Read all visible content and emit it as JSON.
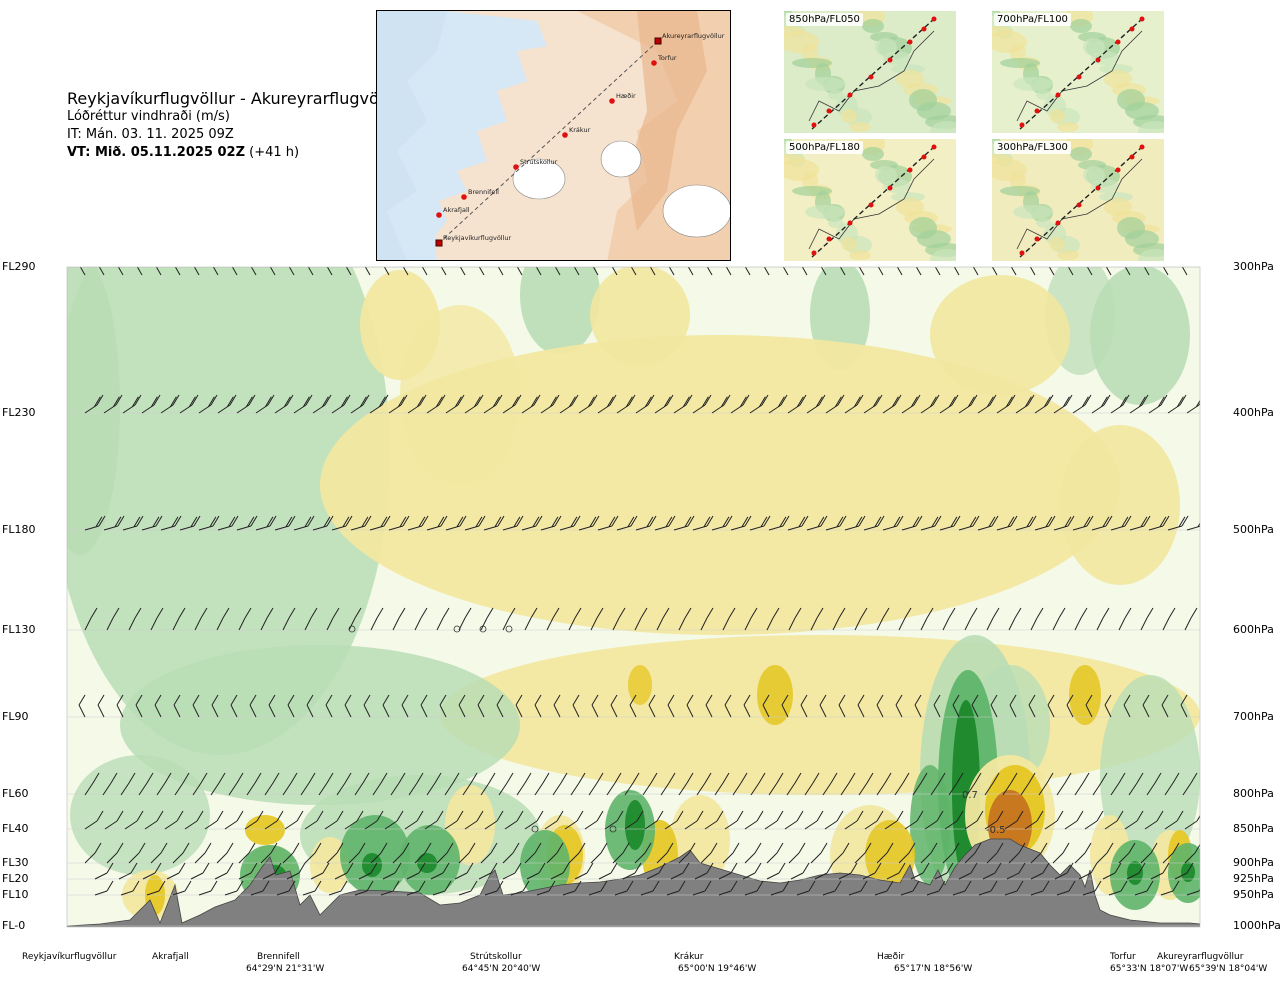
{
  "header": {
    "route": "Reykjavíkurflugvöllur - Akureyrarflugvöllur",
    "parameter": "Lóðréttur vindhraði (m/s)",
    "issue_time": "IT: Mán. 03. 11. 2025 09Z",
    "valid_label": "VT: Mið. 05.11.2025 02Z",
    "valid_offset": "(+41 h)"
  },
  "map": {
    "points": [
      "Akureyrarflugvöllur",
      "Torfur",
      "Hæðir",
      "Krákur",
      "Strútskollur",
      "Brennifell",
      "Akrafjall",
      "Reykjavíkurflugvöllur"
    ]
  },
  "thumbnails": [
    "850hPa/FL050",
    "700hPa/FL100",
    "500hPa/FL180",
    "300hPa/FL300"
  ],
  "levels": [
    {
      "fl": "FL290",
      "hpa": "300hPa"
    },
    {
      "fl": "FL230",
      "hpa": "400hPa"
    },
    {
      "fl": "FL180",
      "hpa": "500hPa"
    },
    {
      "fl": "FL130",
      "hpa": "600hPa"
    },
    {
      "fl": "FL90",
      "hpa": "700hPa"
    },
    {
      "fl": "FL60",
      "hpa": "800hPa"
    },
    {
      "fl": "FL40",
      "hpa": "850hPa"
    },
    {
      "fl": "FL30",
      "hpa": "900hPa"
    },
    {
      "fl": "FL20",
      "hpa": "925hPa"
    },
    {
      "fl": "FL10",
      "hpa": "950hPa"
    },
    {
      "fl": "FL-0",
      "hpa": "1000hPa"
    }
  ],
  "waypoints": [
    {
      "name": "Reykjavíkurflugvöllur",
      "coord": ""
    },
    {
      "name": "Akrafjall",
      "coord": ""
    },
    {
      "name": "Brennifell",
      "coord": "64°29'N 21°31'W"
    },
    {
      "name": "Strútskollur",
      "coord": "64°45'N 20°40'W"
    },
    {
      "name": "Krákur",
      "coord": "65°00'N 19°46'W"
    },
    {
      "name": "Hæðir",
      "coord": "65°17'N 18°56'W"
    },
    {
      "name": "Torfur",
      "coord": "65°33'N 18°07'W"
    },
    {
      "name": "Akureyrarflugvöllur",
      "coord": "65°39'N 18°04'W"
    }
  ],
  "annotations": {
    "max_label": "0.7",
    "min_label": "-0.5"
  },
  "colors": {
    "strong_updraft": "#1f8a2e",
    "updraft": "#5fb46a",
    "weak_updraft": "#b9ddb5",
    "neutral": "#f4f9e8",
    "weak_downdraft": "#f2e7a0",
    "downdraft": "#e6c828",
    "strong_downdraft": "#c8781e",
    "terrain": "#808080"
  },
  "chart_data": {
    "type": "heatmap",
    "title": "Lóðréttur vindhraði (m/s)",
    "x_labels": [
      "Reykjavíkurflugvöllur",
      "Akrafjall",
      "Brennifell",
      "Strútskollur",
      "Krákur",
      "Hæðir",
      "Torfur",
      "Akureyrarflugvöllur"
    ],
    "y_left_ticks": [
      "FL-0",
      "FL10",
      "FL20",
      "FL30",
      "FL40",
      "FL60",
      "FL90",
      "FL130",
      "FL180",
      "FL230",
      "FL290"
    ],
    "y_right_ticks": [
      "1000hPa",
      "950hPa",
      "925hPa",
      "900hPa",
      "850hPa",
      "800hPa",
      "700hPa",
      "600hPa",
      "500hPa",
      "400hPa",
      "300hPa"
    ],
    "annotated_values": [
      0.7,
      -0.5
    ]
  }
}
